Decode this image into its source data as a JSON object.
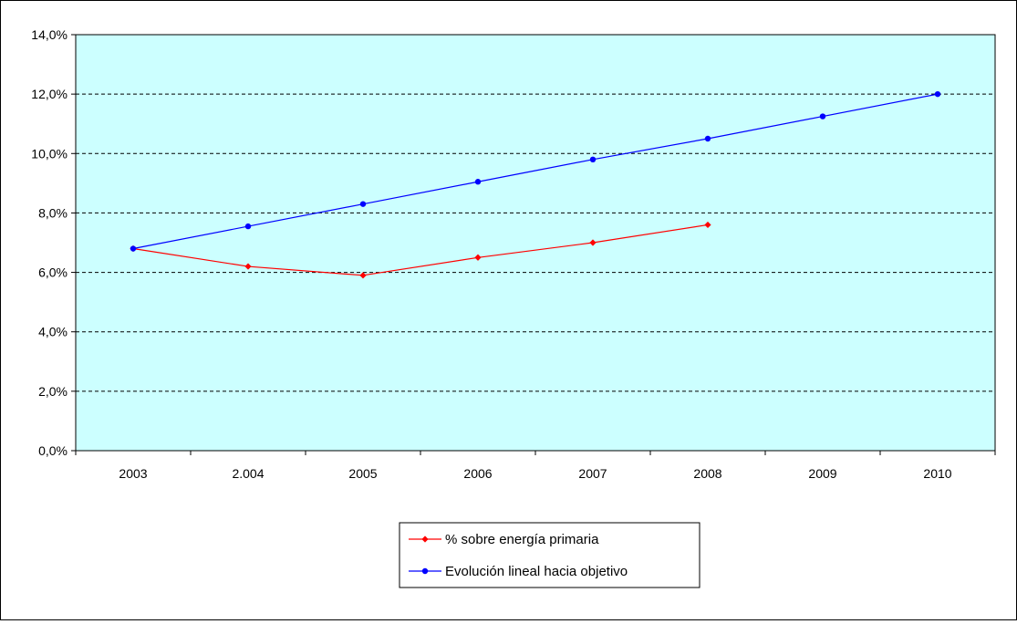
{
  "chart_data": {
    "type": "line",
    "title": "",
    "xlabel": "",
    "ylabel": "",
    "categories": [
      "2003",
      "2.004",
      "2005",
      "2006",
      "2007",
      "2008",
      "2009",
      "2010"
    ],
    "ylim": [
      0,
      14
    ],
    "yticks": [
      "0,0%",
      "2,0%",
      "4,0%",
      "6,0%",
      "8,0%",
      "10,0%",
      "12,0%",
      "14,0%"
    ],
    "grid": true,
    "legend_position": "bottom",
    "plot_background": "#ccffff",
    "series": [
      {
        "name": "% sobre energía primaria",
        "color": "#ff0000",
        "marker": "diamond",
        "values": [
          6.8,
          6.2,
          5.9,
          6.5,
          7.0,
          7.6,
          null,
          null
        ]
      },
      {
        "name": "Evolución lineal hacia objetivo",
        "color": "#0000ff",
        "marker": "circle",
        "values": [
          6.8,
          7.55,
          8.3,
          9.05,
          9.8,
          10.5,
          11.25,
          12.0
        ]
      }
    ]
  }
}
